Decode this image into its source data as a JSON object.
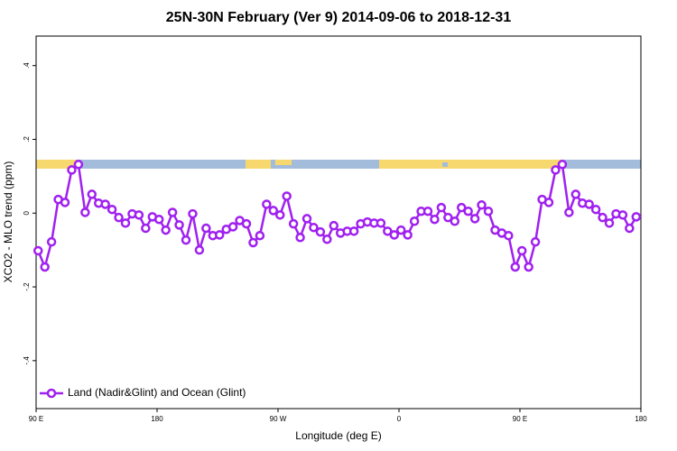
{
  "chart_data": {
    "type": "line",
    "title": "25N-30N February (Ver 9)   2014-09-06 to 2018-12-31",
    "x_label": "Longitude (deg E)",
    "y_label": "XCO2 - MLO trend (ppm)",
    "xlim": [
      90,
      540
    ],
    "xticks": [
      {
        "value": 90,
        "label": "90 E"
      },
      180,
      {
        "value": 270,
        "label": "90 W"
      },
      {
        "value": 360,
        "label": "0"
      },
      {
        "value": 450,
        "label": "90 E"
      },
      {
        "value": 540,
        "label": "180"
      }
    ],
    "ylim": [
      -0.53,
      0.48
    ],
    "yticks": [
      {
        "value": -0.4,
        "label": "-.4"
      },
      {
        "value": -0.2,
        "label": "-.2"
      },
      0,
      {
        "value": 0.2,
        "label": ".2"
      },
      {
        "value": 0.4,
        "label": ".4"
      }
    ],
    "legend": "bottom-left",
    "x": [
      91.5,
      96.5,
      101.5,
      106.5,
      111.5,
      116.5,
      121.5,
      126.5,
      131.5,
      136.5,
      141.5,
      146.5,
      151.5,
      156.5,
      161.5,
      166.5,
      171.5,
      176.5,
      181.5,
      186.5,
      191.5,
      196.5,
      201.5,
      206.5,
      211.5,
      216.5,
      221.5,
      226.5,
      231.5,
      236.5,
      241.5,
      246.5,
      251.5,
      256.5,
      261.5,
      266.5,
      271.5,
      276.5,
      281.5,
      286.5,
      291.5,
      296.5,
      301.5,
      306.5,
      311.5,
      316.5,
      321.5,
      326.5,
      331.5,
      336.5,
      341.5,
      346.5,
      351.5,
      356.5,
      361.5,
      366.5,
      371.5,
      376.5,
      381.5,
      386.5,
      391.5,
      396.5,
      401.5,
      406.5,
      411.5,
      416.5,
      421.5,
      426.5,
      431.5,
      436.5,
      441.5,
      446.5,
      451.5,
      456.5,
      461.5,
      466.5,
      471.5,
      476.5,
      481.5,
      486.5,
      491.5,
      496.5,
      501.5,
      506.5,
      511.5,
      516.5,
      521.5,
      526.5,
      531.5,
      536.5
    ],
    "series": [
      {
        "name": "Land (Nadir&Glint) and Ocean (Glint)",
        "color": "#a020f0",
        "values": [
          -0.102,
          -0.146,
          -0.078,
          0.037,
          0.029,
          0.117,
          0.132,
          0.002,
          0.051,
          0.027,
          0.024,
          0.01,
          -0.012,
          -0.027,
          -0.002,
          -0.005,
          -0.041,
          -0.01,
          -0.017,
          -0.046,
          0.002,
          -0.032,
          -0.073,
          -0.002,
          -0.1,
          -0.041,
          -0.061,
          -0.059,
          -0.044,
          -0.037,
          -0.02,
          -0.029,
          -0.08,
          -0.061,
          0.024,
          0.007,
          -0.005,
          0.046,
          -0.029,
          -0.066,
          -0.015,
          -0.039,
          -0.051,
          -0.071,
          -0.034,
          -0.054,
          -0.049,
          -0.049,
          -0.029,
          -0.024,
          -0.027,
          -0.027,
          -0.049,
          -0.059,
          -0.046,
          -0.059,
          -0.022,
          0.005,
          0.005,
          -0.017,
          0.015,
          -0.012,
          -0.022,
          0.015,
          0.005,
          -0.015,
          0.022,
          0.005,
          -0.046,
          -0.054,
          -0.061,
          -0.146,
          -0.102,
          -0.146,
          -0.078,
          0.037,
          0.029,
          0.117,
          0.132,
          0.002,
          0.051,
          0.027,
          0.024,
          0.01,
          -0.012,
          -0.027,
          -0.002,
          -0.005,
          -0.041,
          -0.01
        ]
      }
    ]
  }
}
